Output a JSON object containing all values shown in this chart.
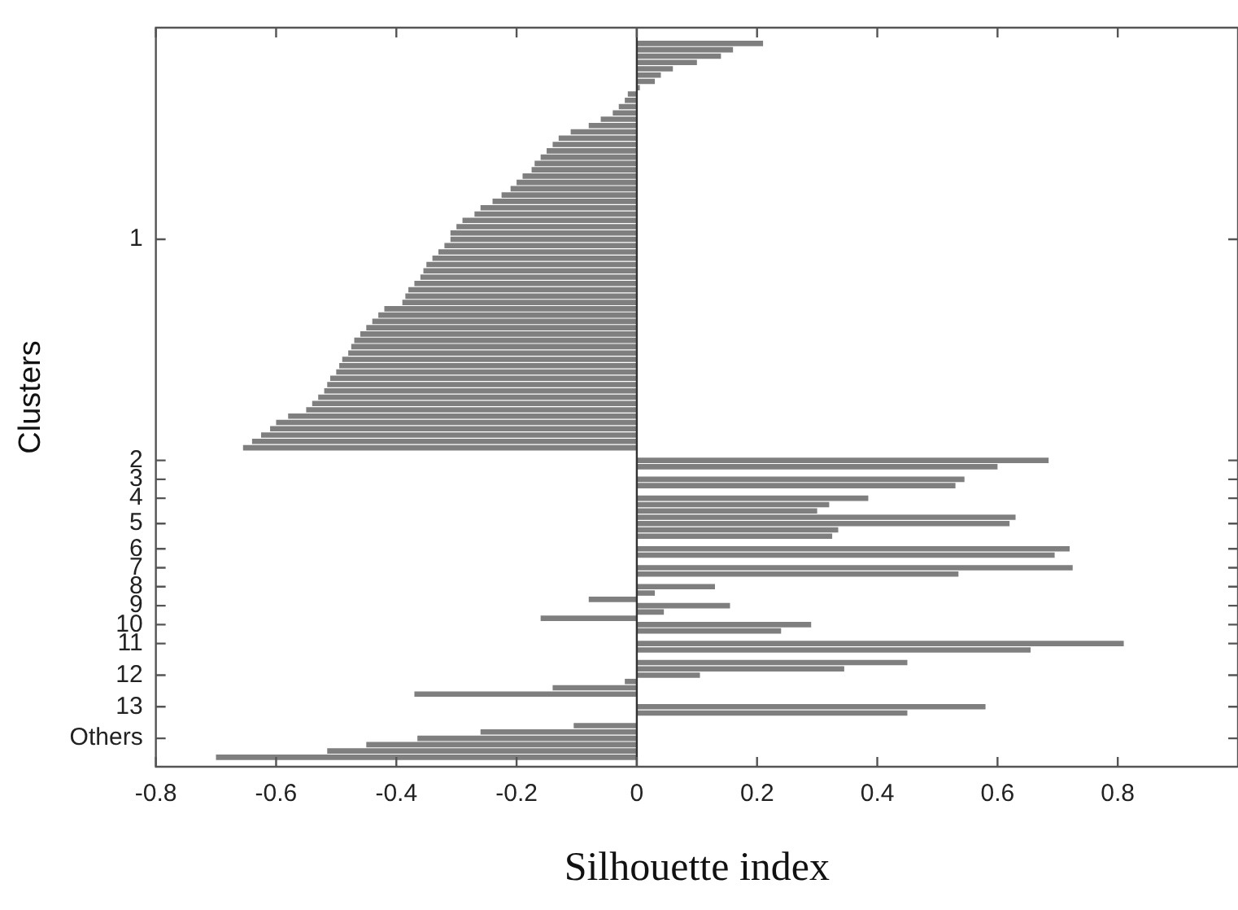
{
  "chart_data": {
    "type": "bar",
    "orientation": "horizontal",
    "xlabel": "Silhouette index",
    "ylabel": "Clusters",
    "categories": [
      null,
      null,
      null,
      null,
      null,
      null,
      null,
      null,
      null,
      null,
      null,
      null,
      null,
      null,
      null,
      null,
      null,
      null,
      null,
      null,
      null,
      null,
      null,
      null,
      null,
      null,
      null,
      null,
      null,
      null,
      null,
      null,
      null,
      "1",
      null,
      null,
      null,
      null,
      null,
      null,
      null,
      null,
      null,
      null,
      null,
      null,
      null,
      null,
      null,
      null,
      null,
      null,
      null,
      null,
      null,
      null,
      null,
      null,
      null,
      null,
      null,
      null,
      null,
      null,
      null,
      null,
      null,
      null,
      "2",
      null,
      null,
      "3",
      null,
      null,
      "4",
      null,
      null,
      null,
      "5",
      null,
      null,
      null,
      "6",
      null,
      null,
      "7",
      null,
      null,
      "8",
      null,
      null,
      "9",
      null,
      null,
      "10",
      null,
      null,
      "11",
      null,
      null,
      null,
      null,
      "12",
      null,
      null,
      null,
      null,
      "13",
      null,
      null,
      null,
      null,
      "Others",
      null,
      null,
      null,
      null
    ],
    "values": [
      null,
      null,
      0.21,
      0.16,
      0.14,
      0.1,
      0.06,
      0.04,
      0.03,
      0.005,
      -0.015,
      -0.02,
      -0.03,
      -0.04,
      -0.06,
      -0.08,
      -0.11,
      -0.13,
      -0.14,
      -0.15,
      -0.16,
      -0.17,
      -0.175,
      -0.19,
      -0.2,
      -0.21,
      -0.225,
      -0.24,
      -0.26,
      -0.27,
      -0.29,
      -0.3,
      -0.31,
      -0.31,
      -0.32,
      -0.33,
      -0.34,
      -0.35,
      -0.355,
      -0.36,
      -0.37,
      -0.38,
      -0.385,
      -0.39,
      -0.42,
      -0.43,
      -0.44,
      -0.45,
      -0.46,
      -0.47,
      -0.475,
      -0.48,
      -0.49,
      -0.495,
      -0.5,
      -0.51,
      -0.515,
      -0.52,
      -0.53,
      -0.54,
      -0.55,
      -0.58,
      -0.6,
      -0.61,
      -0.625,
      -0.64,
      -0.655,
      null,
      0.685,
      0.6,
      null,
      0.545,
      0.53,
      null,
      0.385,
      0.32,
      0.3,
      0.63,
      0.62,
      0.335,
      0.325,
      null,
      0.72,
      0.695,
      null,
      0.725,
      0.535,
      null,
      0.13,
      0.03,
      -0.08,
      0.155,
      0.045,
      -0.16,
      0.29,
      0.24,
      null,
      0.81,
      0.655,
      null,
      0.45,
      0.345,
      0.105,
      -0.02,
      -0.14,
      -0.37,
      null,
      0.58,
      0.45,
      null,
      -0.105,
      -0.26,
      -0.365,
      -0.45,
      -0.515,
      -0.7,
      null
    ],
    "color": "#7f7f7f",
    "xlim": [
      -0.8,
      1
    ],
    "xticks": [
      -0.8,
      -0.6,
      -0.4,
      -0.2,
      0,
      0.2,
      0.4,
      0.6,
      0.8
    ],
    "ref_lines": [
      {
        "axis": "x",
        "value": 0,
        "color": "#333333"
      }
    ],
    "grid": false,
    "legend": false
  }
}
